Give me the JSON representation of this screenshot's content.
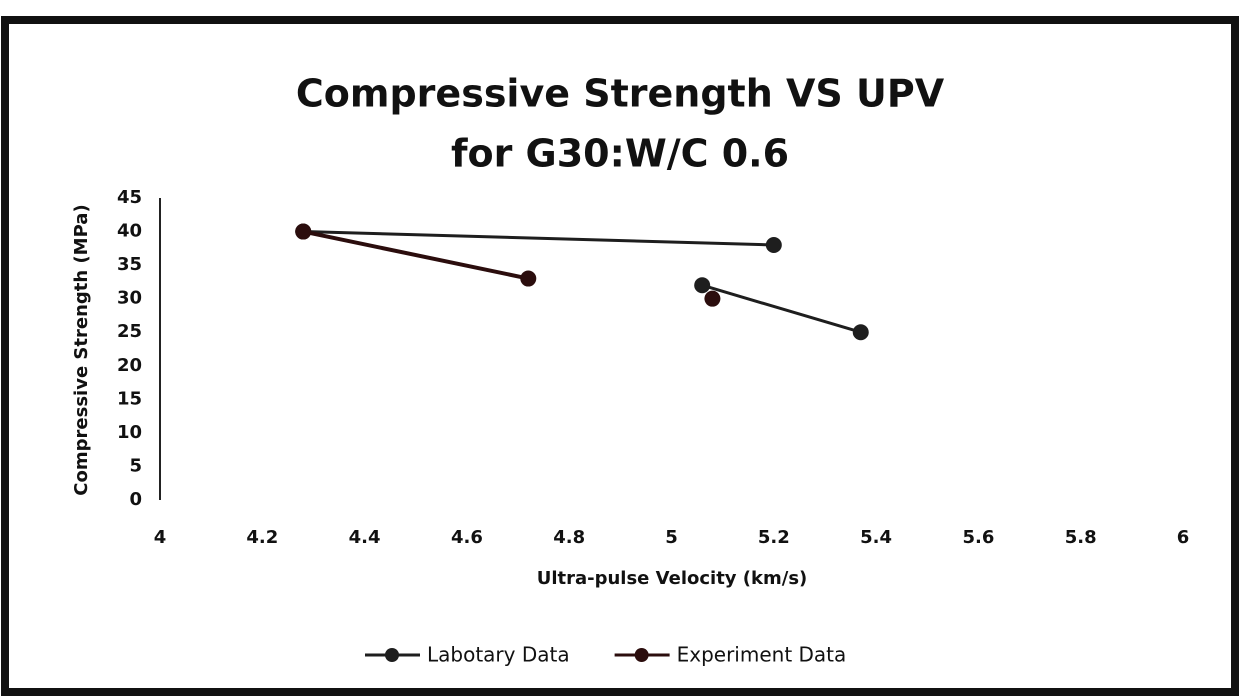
{
  "chart_data": {
    "type": "line",
    "title": [
      "Compressive Strength VS UPV",
      "for G30:W/C 0.6"
    ],
    "x_label": "Ultra-pulse Velocity (km/s)",
    "y_label": "Compressive Strength (MPa)",
    "xlim": [
      4,
      6
    ],
    "xticks": [
      4,
      4.2,
      4.4,
      4.6,
      4.8,
      5,
      5.2,
      5.4,
      5.6,
      5.8,
      6
    ],
    "ylim": [
      0,
      45
    ],
    "yticks": [
      0,
      5,
      10,
      15,
      20,
      25,
      30,
      35,
      40,
      45
    ],
    "grid": false,
    "legend": "bottom",
    "series": [
      {
        "name": "Labotary Data",
        "color": "#1e1e1e",
        "x": [
          4.28,
          5.2,
          null,
          5.06,
          5.37
        ],
        "values": [
          40,
          38,
          null,
          32,
          25
        ]
      },
      {
        "name": "Experiment Data",
        "color": "#2b0d0d",
        "x": [
          4.28,
          4.72,
          null,
          5.08
        ],
        "values": [
          40,
          33,
          null,
          30
        ]
      }
    ]
  }
}
